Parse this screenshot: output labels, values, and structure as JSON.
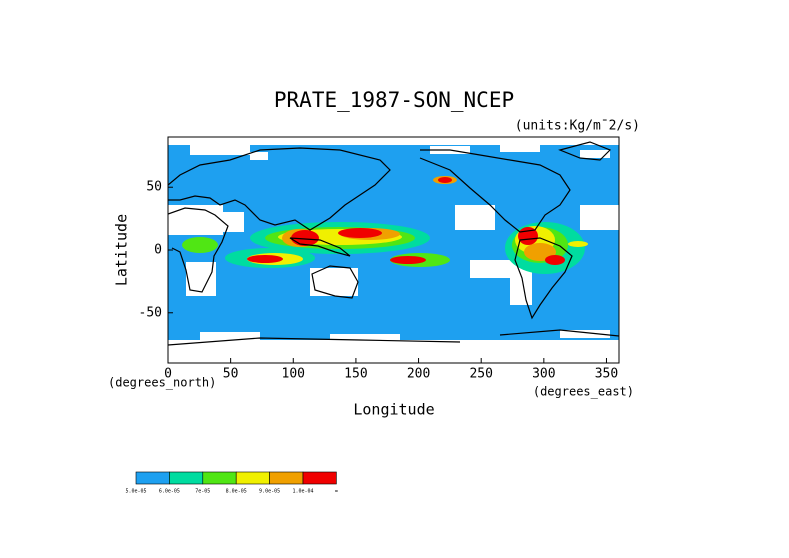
{
  "chart_data": {
    "type": "contour-map",
    "title": "PRATE_1987-SON_NCEP",
    "units": "(units:Kg/m¯2/s)",
    "x_label": "Longitude",
    "y_label": "Latitude",
    "x_unit_label": "(degrees_east)",
    "y_unit_label": "(degrees_north)",
    "xlim": [
      0,
      360
    ],
    "ylim": [
      -90,
      90
    ],
    "xticks": [
      0,
      50,
      100,
      150,
      200,
      250,
      300,
      350
    ],
    "yticks": [
      -50,
      0,
      50
    ],
    "colorbar": {
      "colors": [
        "#1ea0f0",
        "#00dca0",
        "#50e614",
        "#f0f000",
        "#f0a000",
        "#f00000"
      ],
      "labels": [
        "5.0e-05",
        "6.0e-05",
        "7e-05",
        "8.0e-05",
        "9.0e-05",
        "1.0e-04",
        "∞"
      ]
    }
  }
}
